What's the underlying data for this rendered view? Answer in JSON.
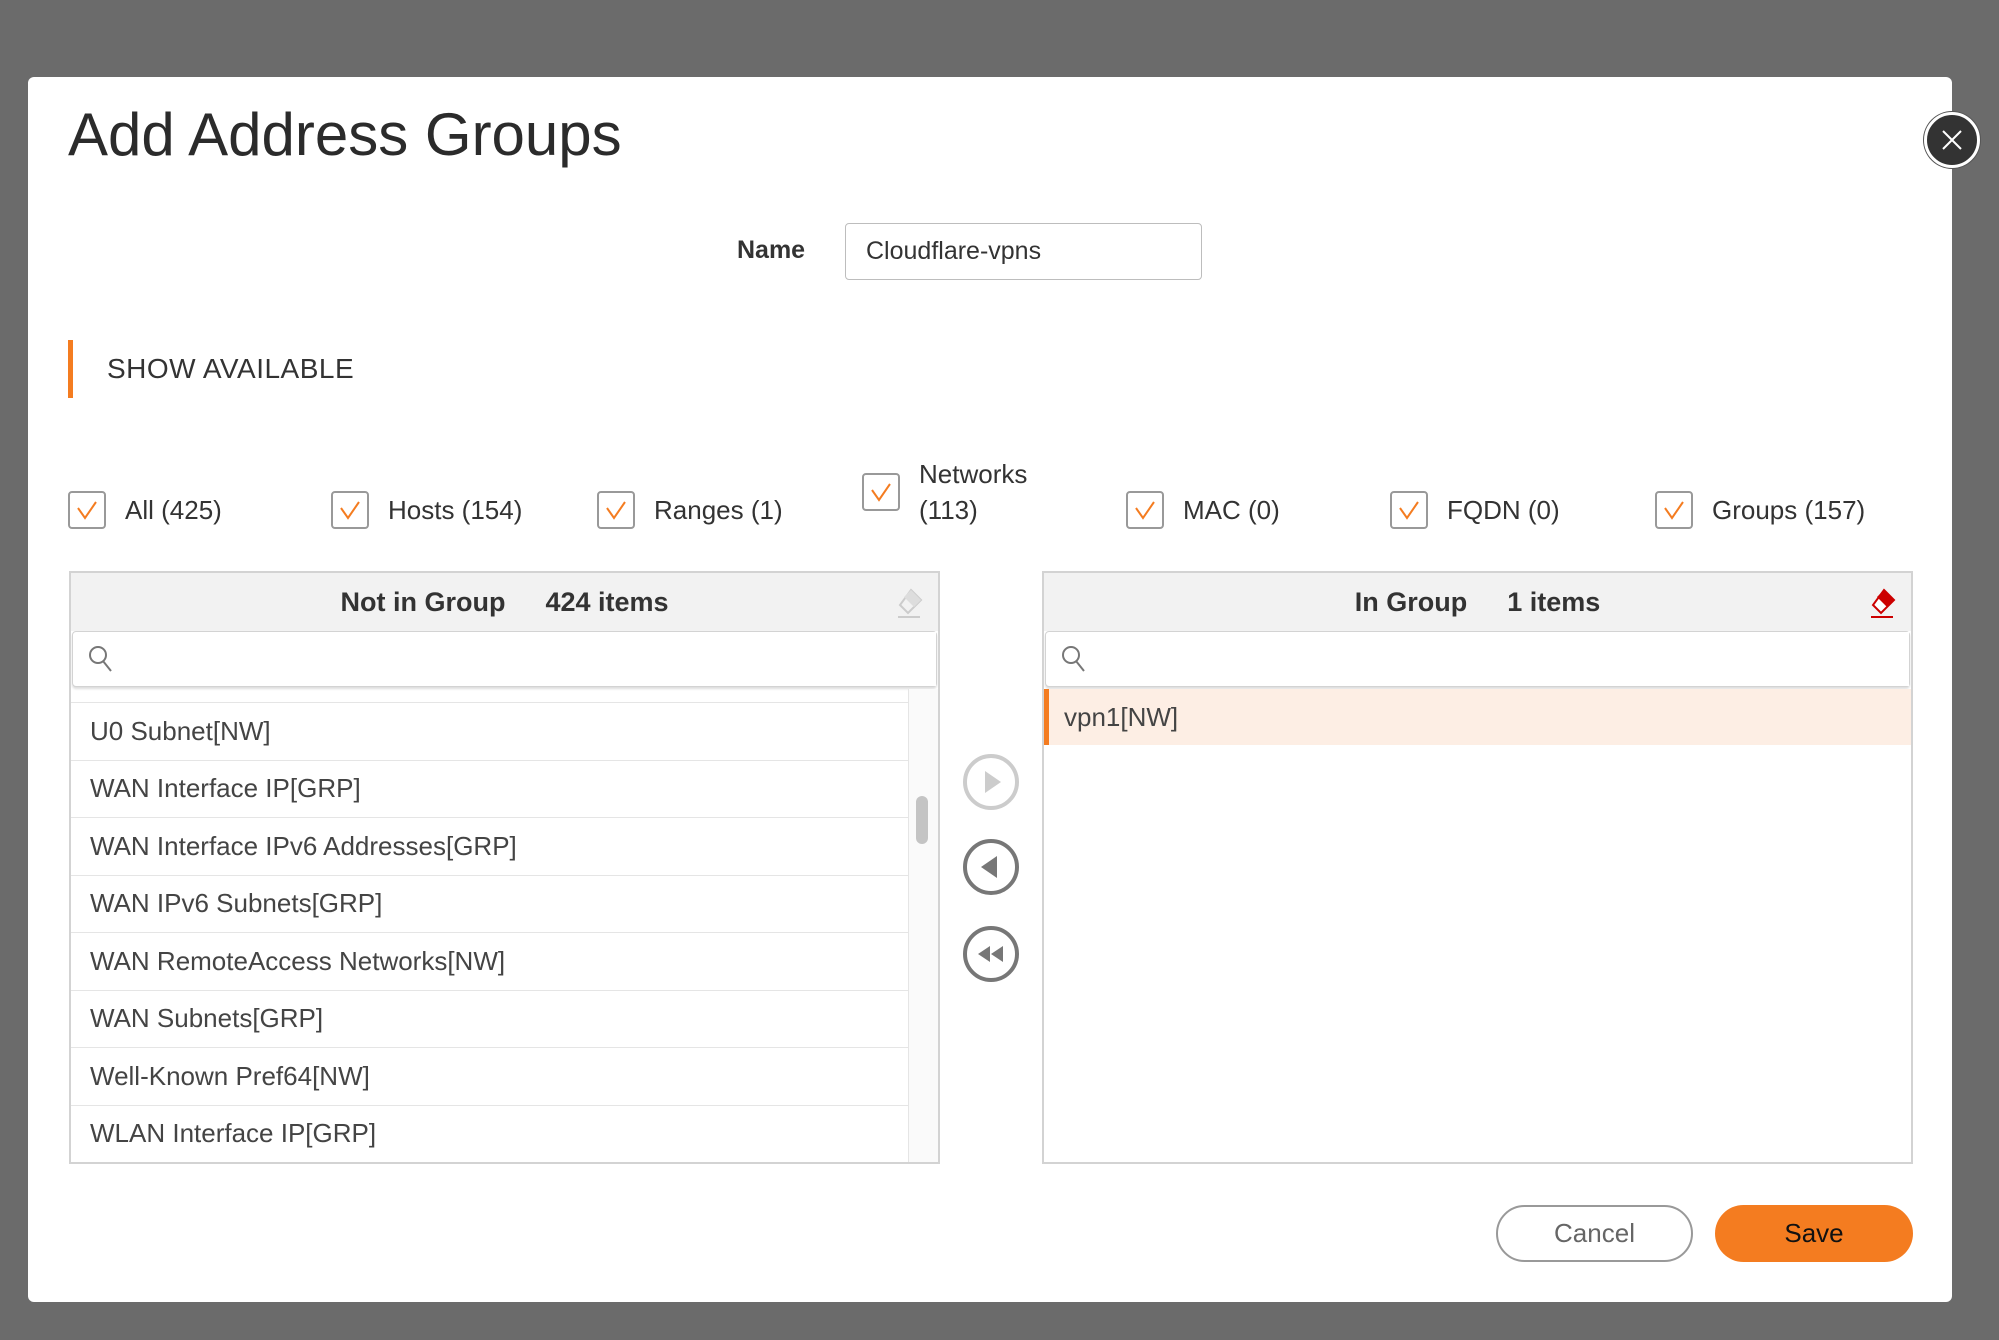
{
  "dialog": {
    "title": "Add Address Groups"
  },
  "name": {
    "label": "Name",
    "value": "Cloudflare-vpns"
  },
  "section": {
    "label": "SHOW AVAILABLE"
  },
  "filters": [
    {
      "label": "All (425)",
      "checked": true
    },
    {
      "label": "Hosts (154)",
      "checked": true
    },
    {
      "label": "Ranges (1)",
      "checked": true
    },
    {
      "label": "Networks (113)",
      "checked": true
    },
    {
      "label": "MAC (0)",
      "checked": true
    },
    {
      "label": "FQDN (0)",
      "checked": true
    },
    {
      "label": "Groups (157)",
      "checked": true
    }
  ],
  "not_in_group": {
    "title": "Not in Group",
    "count": "424 items",
    "search_placeholder": "",
    "items": [
      "U0 Subnet[NW]",
      "WAN Interface IP[GRP]",
      "WAN Interface IPv6 Addresses[GRP]",
      "WAN IPv6 Subnets[GRP]",
      "WAN RemoteAccess Networks[NW]",
      "WAN Subnets[GRP]",
      "Well-Known Pref64[NW]",
      "WLAN Interface IP[GRP]"
    ],
    "scroll_position": 0.45
  },
  "in_group": {
    "title": "In Group",
    "count": "1 items",
    "search_placeholder": "",
    "items": [
      "vpn1[NW]"
    ],
    "selected": "vpn1[NW]"
  },
  "buttons": {
    "cancel": "Cancel",
    "save": "Save"
  },
  "colors": {
    "accent": "#f47c20",
    "eraser_active": "#cc0000",
    "selected_row": "#fdeee4"
  }
}
